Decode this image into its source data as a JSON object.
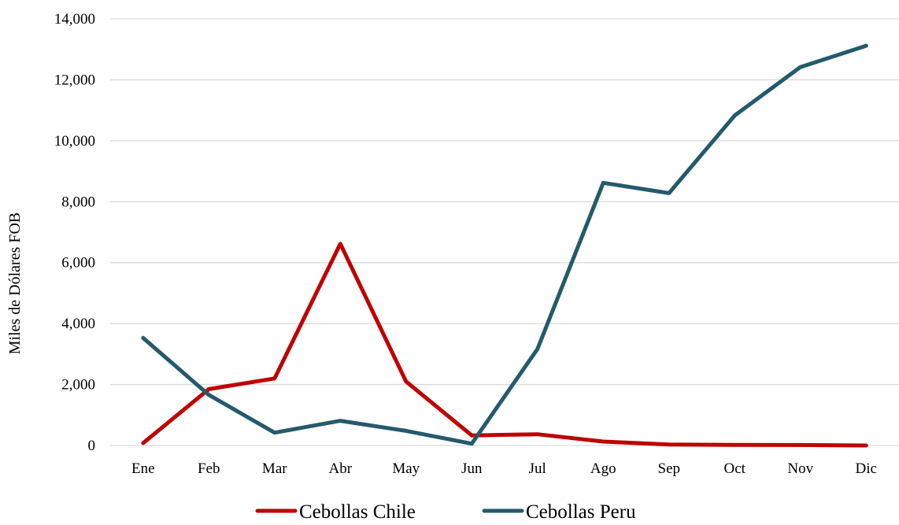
{
  "chart_data": {
    "type": "line",
    "title": "",
    "xlabel": "",
    "ylabel": "Miles de Dólares FOB",
    "categories": [
      "Ene",
      "Feb",
      "Mar",
      "Abr",
      "May",
      "Jun",
      "Jul",
      "Ago",
      "Sep",
      "Oct",
      "Nov",
      "Dic"
    ],
    "ylim": [
      0,
      14000
    ],
    "yticks": [
      0,
      2000,
      4000,
      6000,
      8000,
      10000,
      12000,
      14000
    ],
    "ytick_labels": [
      "0",
      "2,000",
      "4,000",
      "6,000",
      "8,000",
      "10,000",
      "12,000",
      "14,000"
    ],
    "grid": true,
    "legend_position": "bottom",
    "series": [
      {
        "name": "Cebollas Chile",
        "color": "#c00000",
        "values": [
          80,
          1850,
          2200,
          6620,
          2100,
          330,
          370,
          130,
          30,
          20,
          15,
          0
        ]
      },
      {
        "name": "Cebollas Peru",
        "color": "#245a6b",
        "values": [
          3530,
          1660,
          420,
          810,
          480,
          60,
          3170,
          8620,
          8280,
          10830,
          12420,
          13120
        ]
      }
    ]
  }
}
